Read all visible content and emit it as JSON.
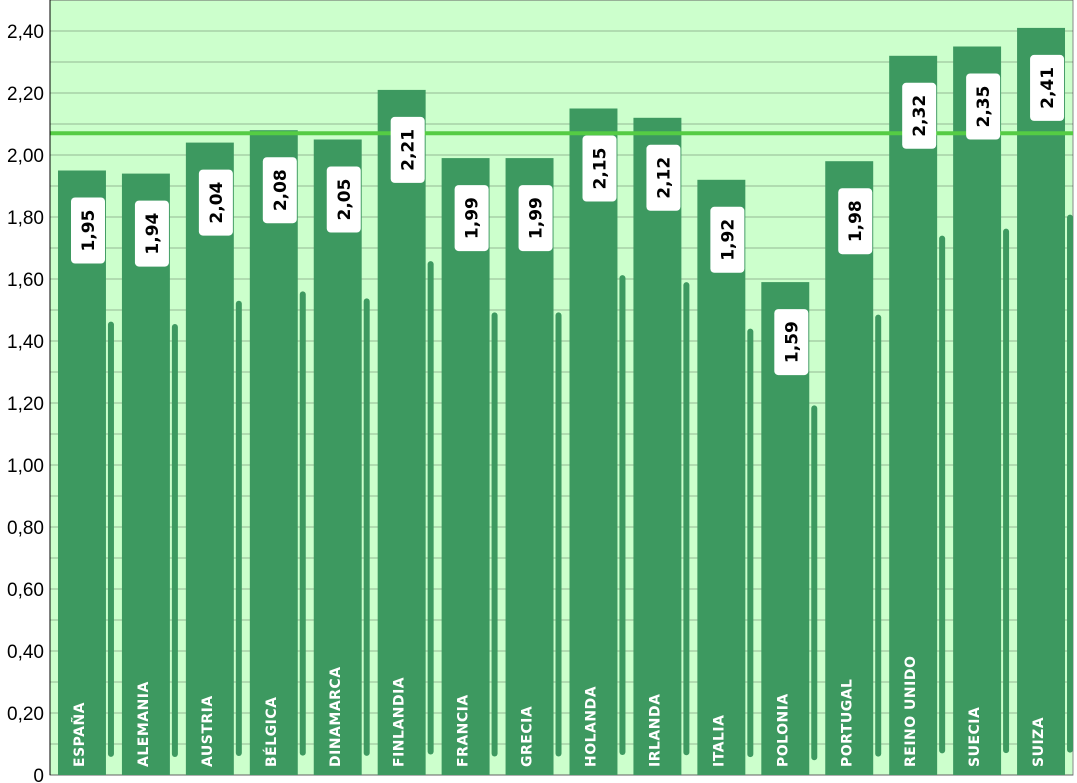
{
  "chart_data": {
    "type": "bar",
    "title": "",
    "xlabel": "",
    "ylabel": "",
    "categories": [
      "ESPAÑA",
      "ALEMANIA",
      "AUSTRIA",
      "BÉLGICA",
      "DINAMARCA",
      "FINLANDIA",
      "FRANCIA",
      "GRECIA",
      "HOLANDA",
      "IRLANDA",
      "ITALIA",
      "POLONIA",
      "PORTUGAL",
      "REINO UNIDO",
      "SUECIA",
      "SUIZA"
    ],
    "values": [
      1.95,
      1.94,
      2.04,
      2.08,
      2.05,
      2.21,
      1.99,
      1.99,
      2.15,
      2.12,
      1.92,
      1.59,
      1.98,
      2.32,
      2.35,
      2.41
    ],
    "value_labels": [
      "1,95",
      "1,94",
      "2,04",
      "2,08",
      "2,05",
      "2,21",
      "1,99",
      "1,99",
      "2,15",
      "2,12",
      "1,92",
      "1,59",
      "1,98",
      "2,32",
      "2,35",
      "2,41"
    ],
    "reference_line": 2.07,
    "ylim": [
      0,
      2.5
    ],
    "yticks": [
      0,
      0.2,
      0.4,
      0.6,
      0.8,
      1.0,
      1.2,
      1.4,
      1.6,
      1.8,
      2.0,
      2.2,
      2.4
    ],
    "ytick_labels": [
      "0",
      "0,20",
      "0,40",
      "0,60",
      "0,80",
      "1,00",
      "1,20",
      "1,40",
      "1,60",
      "1,80",
      "2,00",
      "2,20",
      "2,40"
    ],
    "grid": true,
    "legend": "none"
  },
  "colors": {
    "plot_background": "#ccffcc",
    "bar": "#3d9960",
    "reference_line": "#55cc44",
    "grid": "#000000",
    "category_text": "#ffffff",
    "value_box": "#ffffff"
  }
}
